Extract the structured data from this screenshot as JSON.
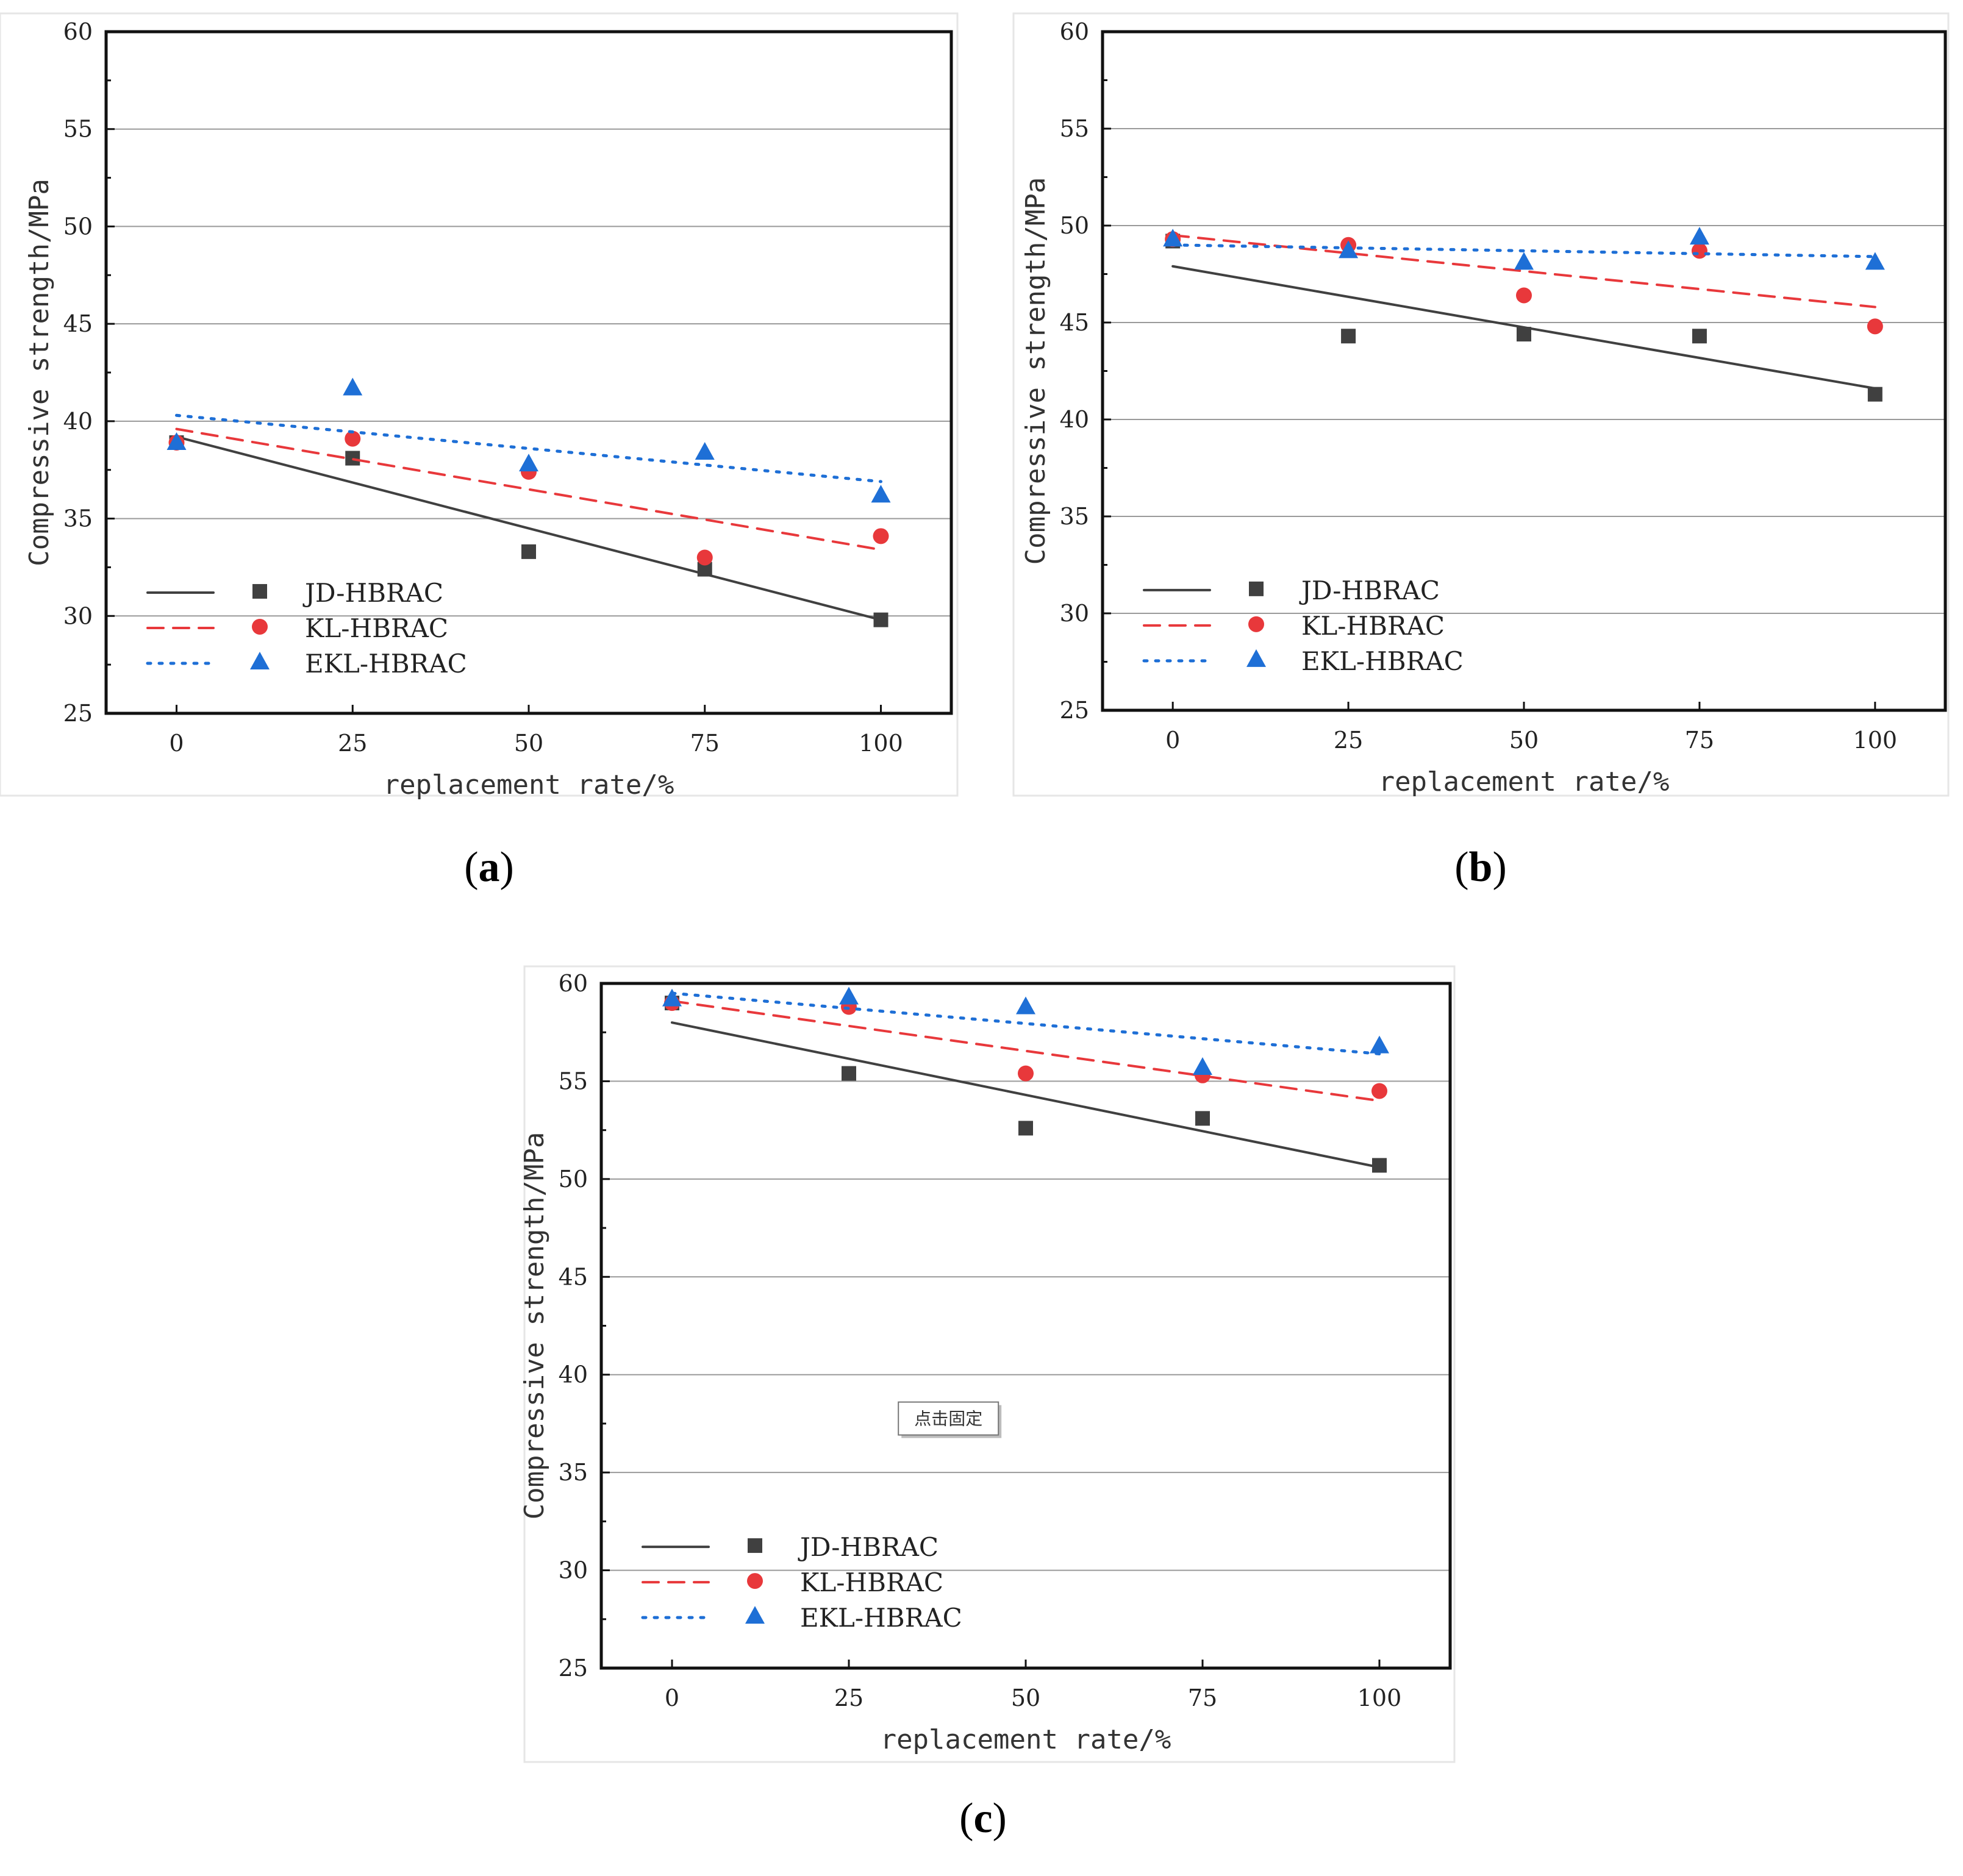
{
  "chart_data": [
    {
      "panel": "a",
      "caption": "a",
      "type": "scatter",
      "xlabel": "replacement rate/%",
      "ylabel": "Compressive strength/MPa",
      "x": [
        0,
        25,
        50,
        75,
        100
      ],
      "xticks": [
        "0",
        "25",
        "50",
        "75",
        "100"
      ],
      "yticks": [
        "25",
        "30",
        "35",
        "40",
        "45",
        "50",
        "55",
        "60"
      ],
      "xlim": [
        -10,
        110
      ],
      "ylim": [
        25,
        60
      ],
      "grid": true,
      "legend_position": "bottom-left",
      "series": [
        {
          "name": "JD-HBRAC",
          "marker": "square",
          "line": "solid",
          "color": "#404040",
          "values": [
            38.9,
            38.1,
            33.3,
            32.4,
            29.8
          ],
          "fit": [
            39.2,
            29.8
          ]
        },
        {
          "name": "KL-HBRAC",
          "marker": "circle",
          "line": "dashed",
          "color": "#e8383b",
          "values": [
            38.9,
            39.1,
            37.4,
            33.0,
            34.1
          ],
          "fit": [
            39.6,
            33.4
          ]
        },
        {
          "name": "EKL-HBRAC",
          "marker": "triangle",
          "line": "dotted",
          "color": "#1e6fd6",
          "values": [
            38.9,
            41.7,
            37.8,
            38.4,
            36.2
          ],
          "fit": [
            40.3,
            36.9
          ]
        }
      ]
    },
    {
      "panel": "b",
      "caption": "b",
      "type": "scatter",
      "xlabel": "replacement rate/%",
      "ylabel": "Compressive strength/MPa",
      "x": [
        0,
        25,
        50,
        75,
        100
      ],
      "xticks": [
        "0",
        "25",
        "50",
        "75",
        "100"
      ],
      "yticks": [
        "25",
        "30",
        "35",
        "40",
        "45",
        "50",
        "55",
        "60"
      ],
      "xlim": [
        -10,
        110
      ],
      "ylim": [
        25,
        60
      ],
      "grid": true,
      "legend_position": "bottom-left",
      "series": [
        {
          "name": "JD-HBRAC",
          "marker": "square",
          "line": "solid",
          "color": "#404040",
          "values": [
            49.2,
            44.3,
            44.4,
            44.3,
            41.3
          ],
          "fit": [
            47.9,
            41.6
          ]
        },
        {
          "name": "KL-HBRAC",
          "marker": "circle",
          "line": "dashed",
          "color": "#e8383b",
          "values": [
            49.3,
            49.0,
            46.4,
            48.7,
            44.8
          ],
          "fit": [
            49.5,
            45.8
          ]
        },
        {
          "name": "EKL-HBRAC",
          "marker": "triangle",
          "line": "dotted",
          "color": "#1e6fd6",
          "values": [
            49.3,
            48.7,
            48.1,
            49.4,
            48.1
          ],
          "fit": [
            49.0,
            48.4
          ]
        }
      ]
    },
    {
      "panel": "c",
      "caption": "c",
      "type": "scatter",
      "xlabel": "replacement rate/%",
      "ylabel": "Compressive strength/MPa",
      "x": [
        0,
        25,
        50,
        75,
        100
      ],
      "xticks": [
        "0",
        "25",
        "50",
        "75",
        "100"
      ],
      "yticks": [
        "25",
        "30",
        "35",
        "40",
        "45",
        "50",
        "55",
        "60"
      ],
      "xlim": [
        -10,
        110
      ],
      "ylim": [
        25,
        60
      ],
      "grid": true,
      "legend_position": "bottom-left",
      "tooltip": "点击固定",
      "series": [
        {
          "name": "JD-HBRAC",
          "marker": "square",
          "line": "solid",
          "color": "#404040",
          "values": [
            59.0,
            55.4,
            52.6,
            53.1,
            50.7
          ],
          "fit": [
            58.0,
            50.6
          ]
        },
        {
          "name": "KL-HBRAC",
          "marker": "circle",
          "line": "dashed",
          "color": "#e8383b",
          "values": [
            59.0,
            58.8,
            55.4,
            55.3,
            54.5
          ],
          "fit": [
            59.1,
            54.0
          ]
        },
        {
          "name": "EKL-HBRAC",
          "marker": "triangle",
          "line": "dotted",
          "color": "#1e6fd6",
          "values": [
            59.2,
            59.3,
            58.8,
            55.7,
            56.8
          ],
          "fit": [
            59.5,
            56.4
          ]
        }
      ]
    }
  ]
}
